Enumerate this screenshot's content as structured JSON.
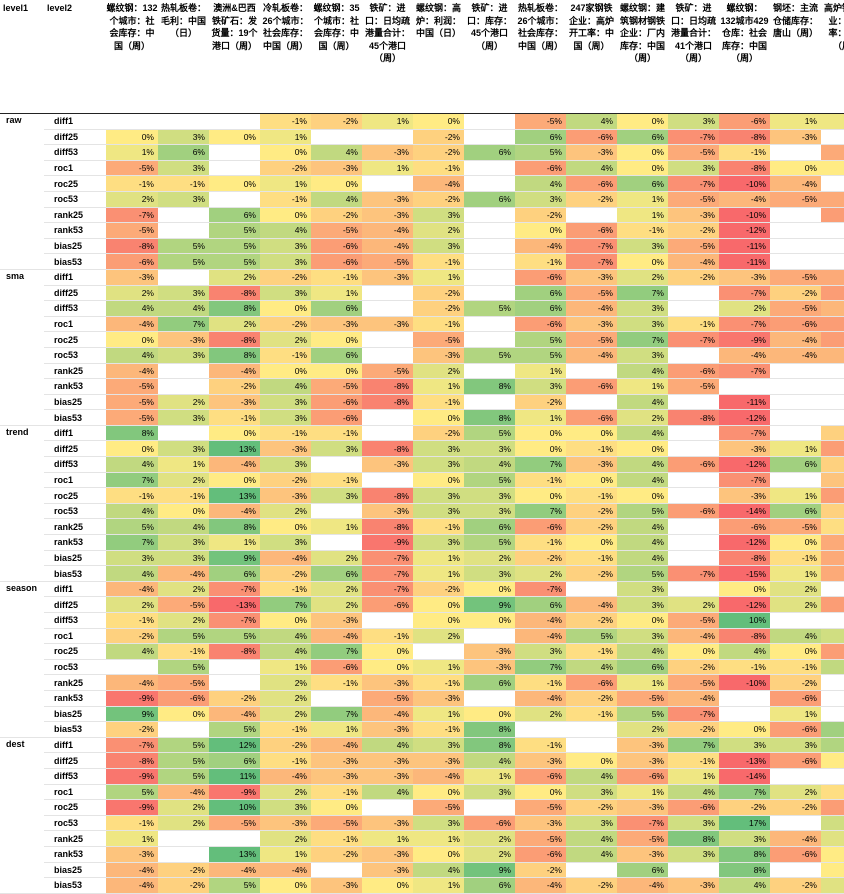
{
  "header": {
    "level1_label": "level1",
    "level2_label": "level2",
    "columns": [
      "螺纹钢：132个城市：社会库存：中国（周）",
      "热轧板卷：毛利：中国（日）",
      "澳洲&巴西铁矿石：发货量：19个港口（周）",
      "冷轧板卷：26个城市：社会库存：中国（周）",
      "螺纹钢：35个城市：社会库存：中国（周）",
      "铁矿：进口：日均疏港量合计：45个港口（周）",
      "螺纹钢：高炉：利润：中国（日）",
      "铁矿：进口：库存：45个港口（周）",
      "热轧板卷：26个城市：社会库存：中国（周）",
      "247家钢铁企业：高炉开工率：中国（周）",
      "螺纹钢：建筑钢材钢铁企业：厂内库存：中国（周）",
      "铁矿：进口：日均疏港量合计：41个港口（周）",
      "螺纹钢：132城市429仓库：社会库存：中国（周）",
      "钢坯：主流仓储库存：唐山（周）",
      "高炉钢铁企业：开工率：唐山（周）"
    ]
  },
  "colors": {
    "low": "#f8696b",
    "mid": "#ffeb84",
    "high": "#63be7b"
  },
  "groups": [
    {
      "level1": "raw",
      "rows": [
        {
          "level2": "diff1",
          "values": [
            null,
            null,
            null,
            -1,
            -2,
            1,
            0,
            null,
            -5,
            4,
            0,
            3,
            -6,
            1,
            1
          ]
        },
        {
          "level2": "diff25",
          "values": [
            0,
            3,
            0,
            1,
            null,
            null,
            -2,
            null,
            6,
            -6,
            6,
            -7,
            -8,
            -3,
            null
          ]
        },
        {
          "level2": "diff53",
          "values": [
            1,
            6,
            null,
            0,
            4,
            -3,
            -2,
            6,
            5,
            -3,
            0,
            -5,
            -1,
            null,
            -5
          ]
        },
        {
          "level2": "roc1",
          "values": [
            -5,
            3,
            null,
            -2,
            -3,
            1,
            -1,
            null,
            -6,
            4,
            0,
            3,
            -8,
            0,
            0
          ]
        },
        {
          "level2": "roc25",
          "values": [
            -1,
            -1,
            0,
            1,
            0,
            null,
            -4,
            null,
            4,
            -6,
            6,
            -7,
            -10,
            -4,
            null
          ]
        },
        {
          "level2": "roc53",
          "values": [
            2,
            3,
            null,
            -1,
            4,
            -3,
            -2,
            6,
            3,
            -2,
            1,
            -5,
            -4,
            -5,
            -5
          ]
        },
        {
          "level2": "rank25",
          "values": [
            -7,
            null,
            6,
            0,
            -2,
            -3,
            3,
            null,
            -2,
            null,
            1,
            -3,
            -10,
            null,
            -6
          ]
        },
        {
          "level2": "rank53",
          "values": [
            -5,
            null,
            5,
            4,
            -5,
            -4,
            2,
            null,
            0,
            -6,
            -1,
            -2,
            -12,
            null,
            null
          ]
        },
        {
          "level2": "bias25",
          "values": [
            -8,
            5,
            5,
            3,
            -6,
            -4,
            3,
            null,
            -4,
            -7,
            3,
            -5,
            -11,
            null,
            null
          ]
        },
        {
          "level2": "bias53",
          "values": [
            -6,
            5,
            5,
            3,
            -6,
            -5,
            -1,
            null,
            -1,
            -7,
            0,
            -4,
            -11,
            null,
            null
          ]
        }
      ]
    },
    {
      "level1": "sma",
      "rows": [
        {
          "level2": "diff1",
          "values": [
            -3,
            null,
            2,
            -2,
            -1,
            -3,
            1,
            null,
            -6,
            -3,
            2,
            -2,
            -3,
            -5,
            -5
          ]
        },
        {
          "level2": "diff25",
          "values": [
            2,
            3,
            -8,
            3,
            1,
            null,
            -2,
            null,
            6,
            -5,
            7,
            null,
            -7,
            -2,
            -6
          ]
        },
        {
          "level2": "diff53",
          "values": [
            4,
            4,
            8,
            0,
            6,
            null,
            -2,
            5,
            6,
            -4,
            3,
            null,
            2,
            -5,
            -4
          ]
        },
        {
          "level2": "roc1",
          "values": [
            -4,
            7,
            2,
            -2,
            -3,
            -3,
            -1,
            null,
            -6,
            -3,
            3,
            -1,
            -7,
            -6,
            -6
          ]
        },
        {
          "level2": "roc25",
          "values": [
            0,
            -3,
            -8,
            2,
            0,
            null,
            -5,
            null,
            5,
            -5,
            7,
            -7,
            -9,
            -4,
            -6
          ]
        },
        {
          "level2": "roc53",
          "values": [
            4,
            3,
            8,
            -1,
            6,
            null,
            -3,
            5,
            5,
            -4,
            3,
            null,
            -4,
            -4,
            -4
          ]
        },
        {
          "level2": "rank25",
          "values": [
            -4,
            null,
            -4,
            0,
            0,
            -5,
            2,
            null,
            1,
            null,
            4,
            -6,
            -7,
            null,
            null
          ]
        },
        {
          "level2": "rank53",
          "values": [
            -5,
            null,
            -2,
            4,
            -5,
            -8,
            1,
            8,
            3,
            -6,
            1,
            -5,
            null,
            null,
            null
          ]
        },
        {
          "level2": "bias25",
          "values": [
            -5,
            2,
            -3,
            3,
            -6,
            -8,
            -1,
            null,
            -2,
            null,
            4,
            null,
            -11,
            null,
            null
          ]
        },
        {
          "level2": "bias53",
          "values": [
            -5,
            3,
            -1,
            3,
            -6,
            null,
            0,
            8,
            1,
            -6,
            2,
            -8,
            -12,
            null,
            null
          ]
        }
      ]
    },
    {
      "level1": "trend",
      "rows": [
        {
          "level2": "diff1",
          "values": [
            8,
            null,
            0,
            -1,
            -1,
            null,
            -2,
            5,
            0,
            0,
            4,
            null,
            -7,
            null,
            -2
          ]
        },
        {
          "level2": "diff25",
          "values": [
            0,
            3,
            13,
            -3,
            3,
            -8,
            3,
            3,
            0,
            -1,
            0,
            null,
            -3,
            1,
            -6
          ]
        },
        {
          "level2": "diff53",
          "values": [
            4,
            1,
            -4,
            3,
            null,
            -3,
            3,
            4,
            7,
            -3,
            4,
            -6,
            -12,
            6,
            -2
          ]
        },
        {
          "level2": "roc1",
          "values": [
            7,
            2,
            0,
            -2,
            -1,
            null,
            0,
            5,
            -1,
            0,
            4,
            null,
            -7,
            null,
            -3
          ]
        },
        {
          "level2": "roc25",
          "values": [
            -1,
            -1,
            13,
            -3,
            3,
            -8,
            3,
            3,
            0,
            -1,
            0,
            null,
            -3,
            1,
            -6
          ]
        },
        {
          "level2": "roc53",
          "values": [
            4,
            0,
            -4,
            2,
            null,
            -3,
            3,
            3,
            7,
            -2,
            5,
            -6,
            -14,
            6,
            -2
          ]
        },
        {
          "level2": "rank25",
          "values": [
            5,
            4,
            8,
            0,
            1,
            -8,
            -1,
            6,
            -6,
            -2,
            4,
            null,
            -6,
            -5,
            -1
          ]
        },
        {
          "level2": "rank53",
          "values": [
            7,
            3,
            1,
            3,
            null,
            -9,
            3,
            5,
            -1,
            0,
            4,
            null,
            -12,
            0,
            -5
          ]
        },
        {
          "level2": "bias25",
          "values": [
            3,
            3,
            9,
            -4,
            2,
            -7,
            1,
            2,
            -2,
            -1,
            4,
            null,
            -8,
            -1,
            -5
          ]
        },
        {
          "level2": "bias53",
          "values": [
            4,
            -4,
            6,
            -2,
            6,
            -7,
            1,
            3,
            2,
            -2,
            5,
            -7,
            -15,
            1,
            -5
          ]
        }
      ]
    },
    {
      "level1": "season",
      "rows": [
        {
          "level2": "diff1",
          "values": [
            -4,
            2,
            -7,
            -1,
            2,
            -7,
            -2,
            0,
            -7,
            null,
            3,
            null,
            0,
            2,
            null
          ]
        },
        {
          "level2": "diff25",
          "values": [
            2,
            -5,
            -13,
            7,
            2,
            -6,
            0,
            9,
            6,
            -4,
            3,
            2,
            -12,
            2,
            -6
          ]
        },
        {
          "level2": "diff53",
          "values": [
            -1,
            2,
            -7,
            0,
            -3,
            null,
            0,
            0,
            -4,
            -2,
            0,
            -5,
            10,
            null,
            null
          ]
        },
        {
          "level2": "roc1",
          "values": [
            -2,
            5,
            5,
            4,
            -4,
            -1,
            2,
            null,
            -4,
            5,
            3,
            -4,
            -8,
            4,
            3
          ]
        },
        {
          "level2": "roc25",
          "values": [
            4,
            -1,
            -8,
            4,
            7,
            0,
            null,
            -3,
            3,
            -1,
            4,
            0,
            4,
            0,
            -6
          ]
        },
        {
          "level2": "roc53",
          "values": [
            null,
            5,
            null,
            1,
            -6,
            0,
            1,
            -3,
            7,
            4,
            6,
            -2,
            -1,
            -1,
            4
          ]
        },
        {
          "level2": "rank25",
          "values": [
            -4,
            -5,
            null,
            2,
            -1,
            -3,
            -1,
            6,
            -1,
            -6,
            1,
            -5,
            -10,
            -2,
            null
          ]
        },
        {
          "level2": "rank53",
          "values": [
            -9,
            -6,
            -2,
            2,
            null,
            -5,
            -3,
            null,
            -4,
            -2,
            -5,
            -4,
            null,
            -6,
            null
          ]
        },
        {
          "level2": "bias25",
          "values": [
            9,
            0,
            -4,
            2,
            7,
            -4,
            1,
            0,
            2,
            -1,
            5,
            -7,
            null,
            1,
            null
          ]
        },
        {
          "level2": "bias53",
          "values": [
            -2,
            null,
            5,
            -1,
            1,
            -3,
            -1,
            8,
            null,
            null,
            2,
            -2,
            0,
            -6,
            6
          ]
        }
      ]
    },
    {
      "level1": "dest",
      "rows": [
        {
          "level2": "diff1",
          "values": [
            -7,
            5,
            12,
            -2,
            -4,
            4,
            3,
            8,
            -1,
            null,
            -3,
            7,
            3,
            3,
            5
          ]
        },
        {
          "level2": "diff25",
          "values": [
            -8,
            5,
            6,
            -1,
            -3,
            -3,
            -3,
            4,
            -3,
            0,
            -3,
            -1,
            -13,
            -6,
            0
          ]
        },
        {
          "level2": "diff53",
          "values": [
            -9,
            5,
            11,
            -4,
            -3,
            -3,
            -4,
            1,
            -6,
            4,
            -6,
            1,
            -14,
            null,
            null
          ]
        },
        {
          "level2": "roc1",
          "values": [
            5,
            -4,
            -9,
            2,
            -1,
            4,
            0,
            3,
            0,
            3,
            1,
            4,
            7,
            2,
            -1
          ]
        },
        {
          "level2": "roc25",
          "values": [
            -9,
            2,
            10,
            3,
            0,
            null,
            -5,
            null,
            -5,
            -2,
            -3,
            -6,
            -2,
            -2,
            -6
          ]
        },
        {
          "level2": "roc53",
          "values": [
            -1,
            2,
            -5,
            -3,
            -5,
            -3,
            3,
            -6,
            -3,
            3,
            -7,
            3,
            17,
            null,
            3
          ]
        },
        {
          "level2": "rank25",
          "values": [
            1,
            null,
            null,
            2,
            -1,
            1,
            1,
            2,
            -5,
            4,
            -5,
            8,
            3,
            -4,
            2
          ]
        },
        {
          "level2": "rank53",
          "values": [
            -3,
            null,
            13,
            1,
            -2,
            -3,
            0,
            2,
            -6,
            4,
            -3,
            3,
            8,
            -6,
            0
          ]
        },
        {
          "level2": "bias25",
          "values": [
            -4,
            -2,
            -4,
            -4,
            null,
            -3,
            4,
            9,
            -2,
            null,
            6,
            null,
            8,
            null,
            0
          ]
        },
        {
          "level2": "bias53",
          "values": [
            -4,
            -2,
            5,
            0,
            -3,
            0,
            1,
            6,
            -4,
            -2,
            -4,
            -3,
            4,
            -2,
            2
          ]
        }
      ]
    }
  ]
}
